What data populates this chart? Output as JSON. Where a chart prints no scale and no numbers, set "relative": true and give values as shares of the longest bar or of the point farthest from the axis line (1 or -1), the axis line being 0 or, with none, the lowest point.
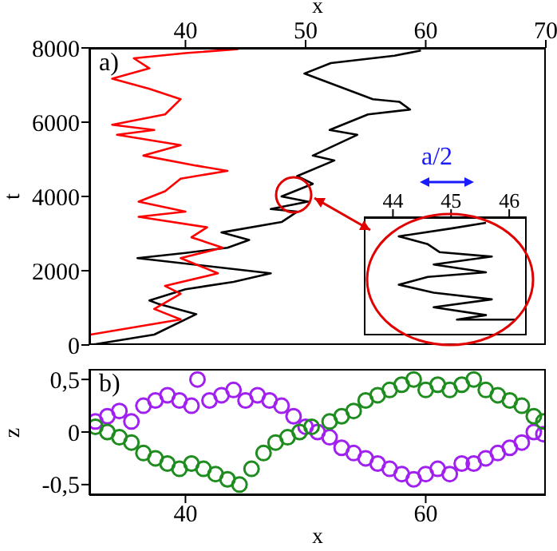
{
  "chart_data": [
    {
      "type": "line",
      "xlabel": "x",
      "ylabel": "t",
      "annotations": [
        "a)"
      ],
      "xlim": [
        32,
        70
      ],
      "xticks": [
        40,
        50,
        60,
        70
      ],
      "ylim": [
        0,
        8000
      ],
      "yticks": [
        0,
        2000,
        4000,
        6000,
        8000
      ],
      "marker": "none",
      "line_style": "solid",
      "series": [
        {
          "color": "#000000",
          "x": [
            32.1,
            37.4,
            40.9,
            37.8,
            37,
            40,
            44,
            47.1,
            36,
            40,
            43.5,
            45.3,
            43,
            48,
            49.3,
            47.1,
            50.2,
            48,
            50.6,
            49.3,
            52.4,
            50.6,
            54.3,
            52,
            55.2,
            58.7,
            57.8,
            55.6,
            49.9,
            52.1,
            57.4,
            59.6
          ],
          "values": [
            0,
            280,
            830,
            1100,
            1200,
            1500,
            1700,
            1930,
            2340,
            2480,
            2620,
            2830,
            3030,
            3310,
            3590,
            3660,
            3860,
            4000,
            4340,
            4550,
            4970,
            5100,
            5660,
            5790,
            6210,
            6340,
            6550,
            6620,
            7310,
            7590,
            7790,
            7930
          ]
        },
        {
          "color": "#ff0000",
          "x": [
            32.1,
            39.6,
            37.4,
            39.6,
            38.3,
            42.7,
            39.6,
            43.1,
            40.5,
            41.8,
            36.1,
            40,
            36.1,
            38.3,
            39.6,
            43.5,
            40.9,
            36.5,
            39.6,
            34.3,
            37.4,
            33.9,
            38.3,
            39.6,
            37,
            33.9,
            37,
            35.7,
            40,
            44.4
          ],
          "values": [
            280,
            690,
            970,
            1380,
            1590,
            1930,
            2340,
            2620,
            2900,
            3170,
            3450,
            3590,
            3860,
            4140,
            4480,
            4690,
            4830,
            5100,
            5380,
            5660,
            5790,
            5930,
            6210,
            6620,
            6900,
            7170,
            7450,
            7720,
            7860,
            7970
          ]
        }
      ]
    },
    {
      "type": "line",
      "relative": true,
      "annotations": [
        "a/2"
      ],
      "xlim": [
        43.5,
        46.3
      ],
      "xticks": [
        44,
        45,
        46
      ],
      "tick_labels": "x",
      "marker": "none",
      "line_style": "solid",
      "series": [
        {
          "color": "#000000",
          "x": [
            45.6,
            45,
            44.1,
            44.6,
            44.8,
            45.7,
            44.7,
            45.6,
            44.6,
            44.1,
            44.7,
            45.7,
            44.7,
            45.6,
            45.1,
            46.1
          ],
          "values": [
            1,
            0.95,
            0.88,
            0.81,
            0.74,
            0.7,
            0.63,
            0.56,
            0.52,
            0.45,
            0.38,
            0.32,
            0.25,
            0.18,
            0.14,
            0.14
          ]
        }
      ]
    },
    {
      "type": "scatter",
      "xlabel": "x",
      "ylabel": "z",
      "annotations": [
        "b)"
      ],
      "xlim": [
        32,
        70
      ],
      "xticks": [
        40,
        60
      ],
      "ylim": [
        -0.6,
        0.6
      ],
      "yticks": [
        {
          "value": -0.5,
          "label": "-0,5"
        },
        0,
        {
          "value": 0.5,
          "label": "0,5"
        }
      ],
      "marker": "circle",
      "series": [
        {
          "color": "#a020f0",
          "x": [
            32.5,
            33.5,
            34.5,
            35.5,
            36.5,
            37.5,
            38.5,
            39.5,
            40.5,
            41,
            42,
            43,
            44,
            45,
            46,
            47,
            48,
            49,
            50,
            51,
            52,
            53,
            54,
            55,
            56,
            57,
            58,
            59,
            60,
            61,
            62,
            63,
            64,
            65,
            66,
            67,
            68,
            69,
            69.8
          ],
          "values": [
            0.1,
            0.15,
            0.2,
            0.1,
            0.25,
            0.3,
            0.35,
            0.3,
            0.25,
            0.5,
            0.3,
            0.35,
            0.4,
            0.3,
            0.35,
            0.3,
            0.25,
            0.15,
            0.05,
            0,
            -0.05,
            -0.15,
            -0.2,
            -0.25,
            -0.3,
            -0.35,
            -0.4,
            -0.45,
            -0.4,
            -0.35,
            -0.4,
            -0.3,
            -0.3,
            -0.25,
            -0.2,
            -0.15,
            -0.1,
            0,
            -0.02
          ]
        },
        {
          "color": "#1e8c1e",
          "x": [
            32.5,
            33.5,
            34.5,
            35.5,
            36.5,
            37.5,
            38.5,
            39.5,
            40.5,
            41.5,
            42.5,
            43.5,
            44.5,
            45.5,
            46.5,
            47.5,
            48.5,
            49.5,
            50.5,
            52,
            53,
            54,
            55,
            56,
            57,
            58,
            59,
            60,
            61,
            62,
            63,
            64,
            65,
            66,
            67,
            68,
            69,
            69.8
          ],
          "values": [
            0.05,
            0,
            -0.05,
            -0.1,
            -0.2,
            -0.25,
            -0.3,
            -0.35,
            -0.3,
            -0.35,
            -0.4,
            -0.45,
            -0.5,
            -0.35,
            -0.2,
            -0.1,
            -0.05,
            0,
            0.05,
            0.1,
            0.15,
            0.2,
            0.3,
            0.35,
            0.4,
            0.45,
            0.5,
            0.4,
            0.45,
            0.4,
            0.45,
            0.5,
            0.4,
            0.35,
            0.3,
            0.25,
            0.15,
            0.1
          ]
        }
      ]
    }
  ]
}
